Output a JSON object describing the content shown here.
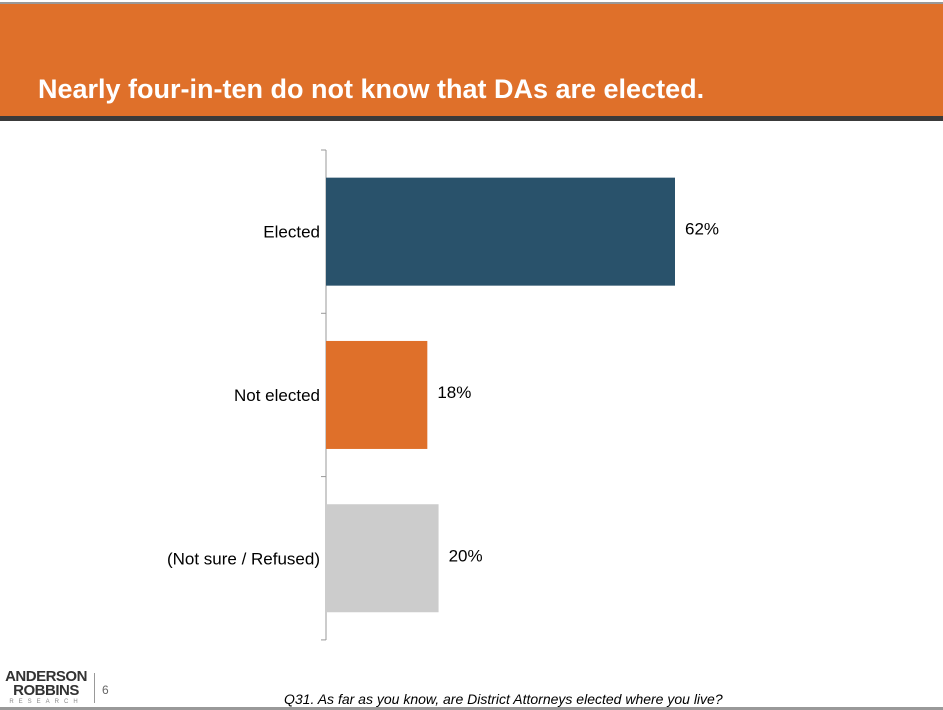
{
  "slide": {
    "title": "Nearly four-in-ten do not know that DAs are elected.",
    "page_number": "6",
    "question": "Q31. As far as you know, are District Attorneys elected where you live?",
    "logo_text": [
      "ANDERSON",
      "ROBBINS",
      "RESEARCH"
    ]
  },
  "colors": {
    "header": "#df702a",
    "elected": "#29526b",
    "not_elected": "#df702a",
    "not_sure": "#cccccc"
  },
  "chart_data": {
    "type": "bar",
    "orientation": "horizontal",
    "categories": [
      "Elected",
      "Not elected",
      "(Not sure / Refused)"
    ],
    "values": [
      62,
      18,
      20
    ],
    "data_labels": [
      "62%",
      "18%",
      "20%"
    ],
    "bar_colors": [
      "#29526b",
      "#df702a",
      "#cccccc"
    ],
    "xlim": [
      0,
      100
    ],
    "grid": false
  }
}
